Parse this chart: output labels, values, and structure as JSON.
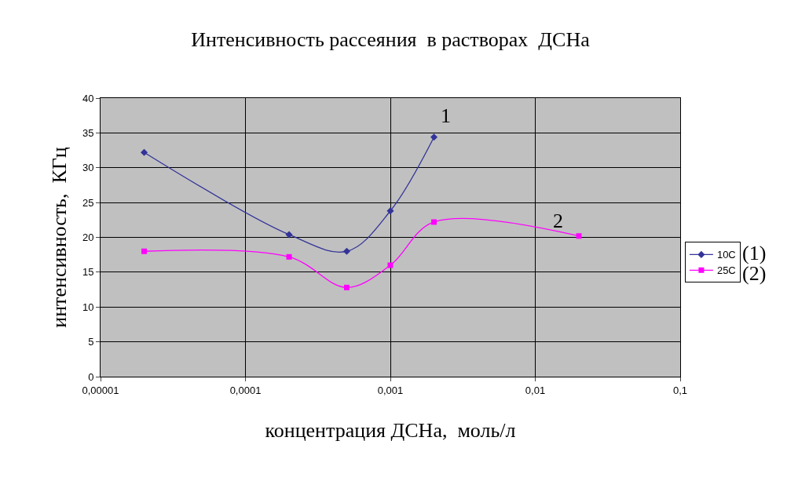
{
  "chart_data": {
    "type": "line",
    "title": "Интенсивность рассеяния  в растворах  ДСНа",
    "xlabel": "концентрация ДСНа,  моль/л",
    "ylabel": "интенсивность,  КГц",
    "log": "x",
    "xlim": [
      1e-05,
      0.1
    ],
    "xticks": [
      {
        "value": 1e-05,
        "label": "0,00001"
      },
      {
        "value": 0.0001,
        "label": "0,0001"
      },
      {
        "value": 0.001,
        "label": "0,001"
      },
      {
        "value": 0.01,
        "label": "0,01"
      },
      {
        "value": 0.1,
        "label": "0,1"
      }
    ],
    "ylim": [
      0,
      40
    ],
    "yticks": [
      0,
      5,
      10,
      15,
      20,
      25,
      30,
      35,
      40
    ],
    "grid": true,
    "legend": "right",
    "series": [
      {
        "name": "10C",
        "color": "#333399",
        "marker": "diamond",
        "x": [
          2e-05,
          0.0002,
          0.0005,
          0.001,
          0.002
        ],
        "values": [
          32.2,
          20.4,
          18.0,
          23.8,
          34.4
        ]
      },
      {
        "name": "25C",
        "color": "#ff00ff",
        "marker": "square",
        "x": [
          2e-05,
          0.0002,
          0.0005,
          0.001,
          0.002,
          0.02
        ],
        "values": [
          18.0,
          17.2,
          12.8,
          16.0,
          22.2,
          20.2
        ]
      }
    ],
    "annotations": [
      "1",
      "2",
      "(1)",
      "(2)"
    ]
  }
}
